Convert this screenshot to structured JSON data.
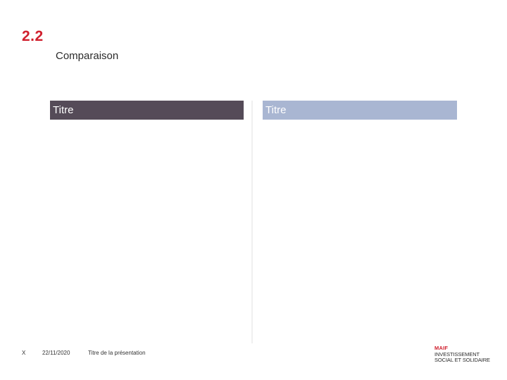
{
  "slide": {
    "section_number": "2.2",
    "title": "Comparaison"
  },
  "columns": {
    "left": {
      "header": "Titre",
      "header_bg": "#554b58"
    },
    "right": {
      "header": "Titre",
      "header_bg": "#a9b6d2"
    }
  },
  "footer": {
    "page": "X",
    "date": "22/11/2020",
    "presentation_title": "Titre de la présentation"
  },
  "logo": {
    "brand": "MAIF",
    "line1": "INVESTISSEMENT",
    "line2": "SOCIAL ET SOLIDAIRE"
  },
  "colors": {
    "accent": "#d0202e",
    "divider": "#f0f0f0"
  }
}
